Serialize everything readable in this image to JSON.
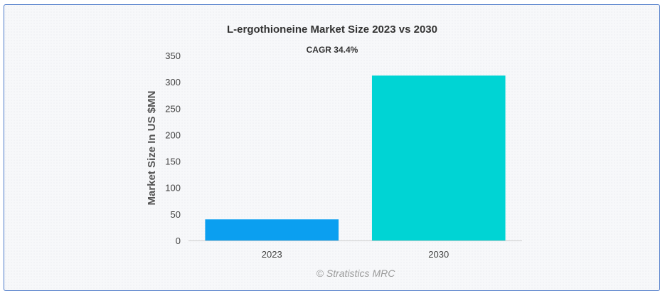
{
  "chart_data": {
    "type": "bar",
    "title": "L-ergothioneine Market Size 2023 vs 2030",
    "subtitle": "CAGR 34.4%",
    "ylabel": "Market Size In US $MN",
    "xlabel": "",
    "categories": [
      "2023",
      "2030"
    ],
    "values": [
      40,
      312
    ],
    "colors": [
      "#0b9ff0",
      "#00d4d4"
    ],
    "ylim": [
      0,
      350
    ],
    "yticks": [
      "0",
      "50",
      "100",
      "150",
      "200",
      "250",
      "300",
      "350"
    ],
    "grid": false,
    "legend": "none"
  },
  "credit": "© Stratistics MRC"
}
